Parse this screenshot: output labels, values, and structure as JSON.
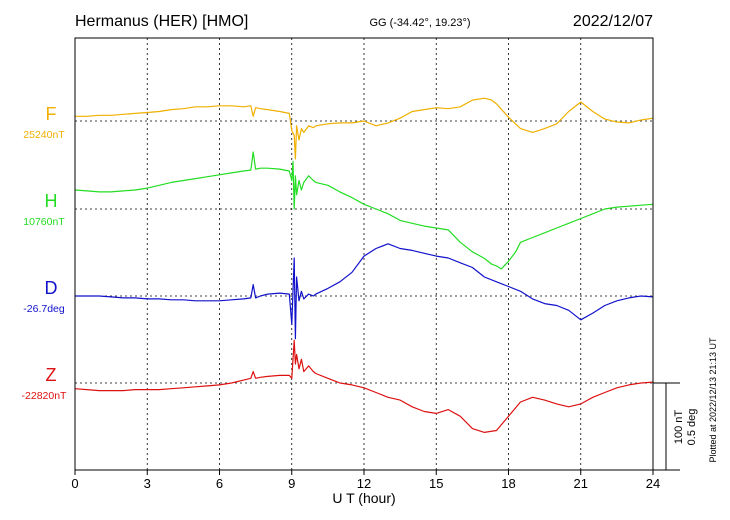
{
  "chart_data": {
    "type": "line",
    "title_station": "Hermanus (HER)  [HMO]",
    "title_coords": "GG (-34.42°,  19.23°)",
    "title_date": "2022/12/07",
    "xlabel": "U T (hour)",
    "xlim": [
      0,
      24
    ],
    "x_ticks": [
      "0",
      "3",
      "6",
      "9",
      "12",
      "15",
      "18",
      "21",
      "24"
    ],
    "scale_label_1": "100 nT",
    "scale_label_2": "0.5 deg",
    "plotted_note": "Plotted at 2022/12/13 21:13 UT",
    "grid": true,
    "colors": {
      "F": "#f0b000",
      "H": "#22dd22",
      "D": "#1111cc",
      "Z": "#dd1111"
    },
    "series": [
      {
        "name": "F",
        "baseline_label": "25240nT",
        "unit": "nT",
        "x": [
          0,
          0.5,
          1,
          1.5,
          2,
          2.5,
          3,
          3.5,
          4,
          4.5,
          5,
          5.5,
          6,
          6.5,
          7,
          7.3,
          7.4,
          7.5,
          7.7,
          8,
          8.5,
          8.9,
          9.0,
          9.1,
          9.15,
          9.2,
          9.3,
          9.4,
          9.5,
          9.7,
          9.9,
          10,
          10.5,
          11,
          11.5,
          12,
          12.5,
          13,
          13.5,
          14,
          14.5,
          15,
          15.5,
          16,
          16.5,
          17,
          17.3,
          17.5,
          18,
          18.5,
          19,
          19.5,
          20,
          20.5,
          21,
          21.5,
          22,
          22.5,
          23,
          23.5,
          24
        ],
        "values": [
          5,
          5,
          6,
          6,
          7,
          8,
          9,
          10,
          12,
          13,
          15,
          15,
          16,
          16,
          15,
          16,
          5,
          14,
          13,
          12,
          10,
          8,
          -10,
          -15,
          -40,
          -5,
          -20,
          -8,
          -12,
          -5,
          -7,
          -5,
          -3,
          -2,
          -2,
          0,
          -5,
          -2,
          3,
          10,
          12,
          14,
          13,
          15,
          22,
          24,
          22,
          18,
          4,
          -8,
          -12,
          -8,
          -3,
          10,
          20,
          10,
          2,
          -1,
          -2,
          1,
          3
        ]
      },
      {
        "name": "H",
        "baseline_label": "10760nT",
        "unit": "nT",
        "x": [
          0,
          0.5,
          1,
          1.5,
          2,
          2.5,
          3,
          3.5,
          4,
          4.5,
          5,
          5.5,
          6,
          6.5,
          7,
          7.3,
          7.4,
          7.5,
          7.7,
          8,
          8.5,
          8.9,
          9.0,
          9.05,
          9.1,
          9.15,
          9.2,
          9.3,
          9.4,
          9.5,
          9.7,
          9.9,
          10,
          10.5,
          11,
          11.5,
          12,
          12.5,
          13,
          13.5,
          14,
          14.5,
          15,
          15.5,
          16,
          16.5,
          17,
          17.3,
          17.5,
          17.7,
          18,
          18.3,
          18.5,
          19,
          19.5,
          20,
          20.5,
          21,
          21.5,
          22,
          22.5,
          23,
          23.5,
          24
        ],
        "values": [
          20,
          19,
          18,
          18,
          19,
          20,
          22,
          25,
          28,
          30,
          32,
          34,
          36,
          38,
          40,
          41,
          60,
          42,
          43,
          43,
          42,
          40,
          30,
          50,
          0,
          35,
          15,
          30,
          20,
          28,
          35,
          30,
          28,
          25,
          18,
          12,
          5,
          0,
          -5,
          -12,
          -15,
          -18,
          -20,
          -22,
          -35,
          -45,
          -52,
          -58,
          -60,
          -63,
          -55,
          -45,
          -35,
          -30,
          -25,
          -20,
          -15,
          -10,
          -5,
          0,
          2,
          3,
          4,
          5
        ]
      },
      {
        "name": "D",
        "baseline_label": "-26.7deg",
        "unit": "deg",
        "x": [
          0,
          0.5,
          1,
          1.5,
          2,
          2.5,
          3,
          3.5,
          4,
          4.5,
          5,
          5.5,
          6,
          6.5,
          7,
          7.3,
          7.4,
          7.5,
          7.7,
          8,
          8.5,
          8.9,
          9.0,
          9.1,
          9.15,
          9.2,
          9.3,
          9.4,
          9.5,
          9.7,
          9.9,
          10,
          10.5,
          11,
          11.5,
          12,
          12.5,
          13,
          13.5,
          14,
          14.5,
          15,
          15.5,
          16,
          16.5,
          17,
          17.5,
          18,
          18.5,
          19,
          19.5,
          20,
          20.5,
          21,
          21.5,
          22,
          22.5,
          23,
          23.5,
          24
        ],
        "values": [
          0,
          0,
          0,
          -1,
          -2,
          -2,
          -3,
          -3,
          -4,
          -4,
          -5,
          -5,
          -5,
          -4,
          -3,
          -2,
          12,
          -2,
          0,
          2,
          3,
          2,
          -30,
          40,
          -45,
          20,
          -5,
          5,
          -3,
          2,
          0,
          2,
          8,
          15,
          25,
          42,
          50,
          55,
          50,
          48,
          45,
          42,
          40,
          35,
          30,
          20,
          15,
          10,
          5,
          -3,
          -8,
          -10,
          -15,
          -25,
          -18,
          -10,
          -5,
          -2,
          0,
          -1
        ]
      },
      {
        "name": "Z",
        "baseline_label": "-22820nT",
        "unit": "nT",
        "x": [
          0,
          0.5,
          1,
          1.5,
          2,
          2.5,
          3,
          3.5,
          4,
          4.5,
          5,
          5.5,
          6,
          6.5,
          7,
          7.3,
          7.4,
          7.5,
          7.7,
          8,
          8.5,
          8.9,
          9.0,
          9.1,
          9.15,
          9.2,
          9.3,
          9.4,
          9.5,
          9.7,
          9.9,
          10,
          10.5,
          11,
          11.5,
          12,
          12.5,
          13,
          13.5,
          14,
          14.5,
          15,
          15.5,
          16,
          16.5,
          17,
          17.5,
          18,
          18.5,
          19,
          19.5,
          20,
          20.5,
          21,
          21.5,
          22,
          22.5,
          23,
          23.5,
          24
        ],
        "values": [
          -6,
          -7,
          -8,
          -8,
          -8,
          -7,
          -7,
          -7,
          -6,
          -5,
          -4,
          -3,
          -2,
          0,
          3,
          5,
          12,
          5,
          6,
          7,
          8,
          8,
          5,
          45,
          20,
          30,
          15,
          25,
          12,
          18,
          12,
          10,
          5,
          0,
          -2,
          -5,
          -10,
          -15,
          -18,
          -25,
          -30,
          -32,
          -28,
          -35,
          -48,
          -52,
          -50,
          -35,
          -20,
          -15,
          -18,
          -22,
          -25,
          -22,
          -15,
          -10,
          -5,
          -2,
          0,
          1
        ]
      }
    ]
  }
}
